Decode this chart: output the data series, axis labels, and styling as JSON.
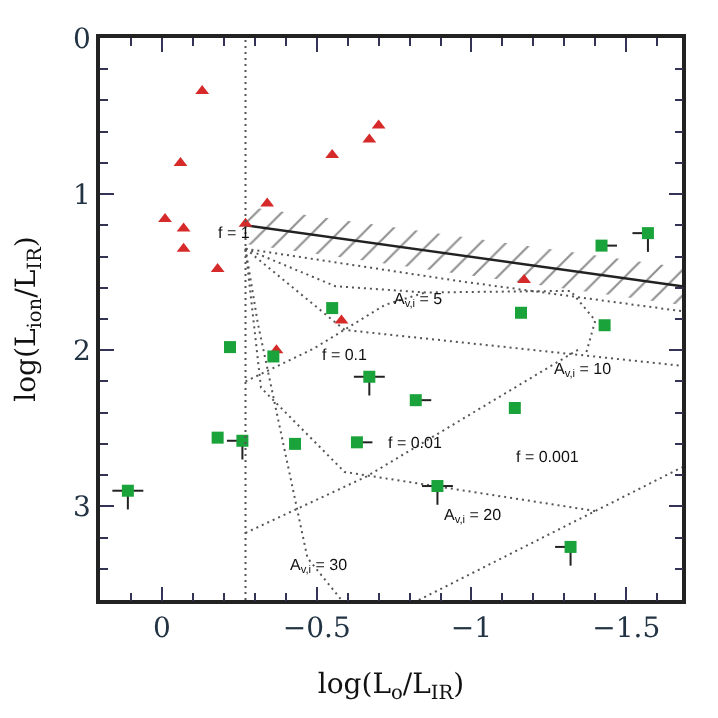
{
  "chart_data": {
    "type": "scatter",
    "xlabel": "log(L$_{o}$/L$_{IR}$)",
    "ylabel": "log(L$_{ion}$/L$_{IR}$)",
    "xlim": [
      0.2,
      -1.68
    ],
    "ylim": [
      3.6,
      0
    ],
    "xticks": [
      0,
      {
        "value": -0.5,
        "label": "−0.5"
      },
      {
        "value": -1,
        "label": "−1"
      },
      {
        "value": -1.5,
        "label": "−1.5"
      }
    ],
    "yticks": [
      0,
      1,
      2,
      3
    ],
    "series": [
      {
        "type": "line",
        "line_style": "dotted",
        "color": "#555555",
        "x": [
          -0.27,
          -0.97,
          -1.68
        ],
        "values": [
          1.35,
          1.56,
          1.75
        ]
      },
      {
        "type": "line",
        "line_style": "dotted",
        "color": "#555555",
        "x": [
          -0.27,
          -0.56,
          -0.85,
          -1.32,
          -1.4,
          -1.37
        ],
        "values": [
          1.35,
          1.59,
          1.63,
          1.62,
          1.81,
          2.02
        ]
      },
      {
        "type": "line",
        "line_style": "dotted",
        "color": "#555555",
        "x": [
          -0.27,
          -0.59,
          -1.68
        ],
        "values": [
          1.35,
          1.87,
          2.1
        ]
      },
      {
        "type": "line",
        "line_style": "dotted",
        "color": "#555555",
        "x": [
          -0.27,
          -0.32,
          -0.59,
          -1.4
        ],
        "values": [
          1.35,
          2.24,
          2.78,
          3.03
        ]
      },
      {
        "type": "line",
        "line_style": "dotted",
        "color": "#555555",
        "x": [
          -0.27,
          -0.31,
          -0.47,
          -0.58
        ],
        "values": [
          1.35,
          1.83,
          3.33,
          3.6
        ]
      },
      {
        "type": "line",
        "line_style": "dotted",
        "color": "#555555",
        "x": [
          -0.27,
          -0.49,
          -0.72,
          -0.85
        ],
        "values": [
          2.2,
          1.99,
          1.71,
          1.63
        ]
      },
      {
        "type": "line",
        "line_style": "dotted",
        "color": "#555555",
        "x": [
          -0.27,
          -0.66,
          -1.35
        ],
        "values": [
          3.17,
          2.81,
          1.99
        ]
      },
      {
        "type": "line",
        "line_style": "dotted",
        "color": "#555555",
        "x": [
          -0.83,
          -1.4,
          -1.68
        ],
        "values": [
          3.6,
          3.03,
          2.75
        ]
      },
      {
        "type": "line",
        "line_style": "solid",
        "color": "#222222",
        "x": [
          -0.27,
          -1.68
        ],
        "values": [
          1.2,
          1.59
        ],
        "lower": [
          1.08,
          1.47
        ],
        "upper": [
          1.32,
          1.71
        ]
      },
      {
        "marker": "triangle",
        "color": "#d62a2a",
        "x": [
          -0.13,
          -0.06,
          -0.55,
          -0.01,
          -0.07,
          -0.07,
          -0.18,
          -0.27,
          -0.34,
          -0.58,
          -0.7,
          -0.67,
          -1.17,
          -0.37
        ],
        "values": [
          0.34,
          0.8,
          0.75,
          1.16,
          1.22,
          1.35,
          1.48,
          1.19,
          1.06,
          1.81,
          0.56,
          0.65,
          1.55,
          2.0
        ]
      },
      {
        "marker": "square",
        "color": "#1aa33a",
        "x": [
          -0.55,
          -1.57,
          -1.42,
          -1.16,
          -1.43,
          -0.22,
          -0.36,
          -0.18,
          -0.26,
          -0.43,
          -0.63,
          0.11,
          -0.67,
          -0.82,
          -1.14,
          -0.89,
          -1.32
        ],
        "values": [
          1.73,
          1.25,
          1.33,
          1.76,
          1.84,
          1.98,
          2.04,
          2.56,
          2.58,
          2.6,
          2.59,
          2.9,
          2.17,
          2.32,
          2.37,
          2.87,
          3.26
        ],
        "xerrors": [
          null,
          [
            -1.57,
            -1.52
          ],
          [
            -1.47,
            -1.42
          ],
          null,
          null,
          null,
          null,
          null,
          [
            -0.26,
            -0.21
          ],
          null,
          [
            -0.68,
            -0.63
          ],
          [
            0.06,
            0.16
          ],
          [
            -0.72,
            -0.62
          ],
          [
            -0.87,
            -0.82
          ],
          null,
          [
            -0.94,
            -0.84
          ],
          [
            -1.32,
            -1.27
          ]
        ],
        "errors": [
          null,
          [
            1.25,
            1.37
          ],
          null,
          null,
          null,
          null,
          null,
          null,
          [
            2.58,
            2.7
          ],
          null,
          null,
          [
            2.9,
            3.02
          ],
          [
            2.17,
            2.29
          ],
          null,
          null,
          [
            2.87,
            2.99
          ],
          [
            3.26,
            3.38
          ]
        ]
      }
    ],
    "ref_lines": [
      {
        "axis": "x",
        "value": -0.27,
        "color": "#555555",
        "line_style": "dotted"
      }
    ],
    "annotations": [
      {
        "text": "f = 1",
        "x": -0.23,
        "y": 1.25
      },
      {
        "text": "A$_{v,i}$ = 5",
        "x": -0.83,
        "y": 1.68
      },
      "f = 0.1",
      "A$_{v,i}$ = 10",
      {
        "text": "f = 0.01",
        "x": -0.82,
        "y": 2.59
      },
      "f = 0.001",
      "A$_{v,i}$ = 20",
      {
        "text": "A$_{v,i}$ = 30",
        "x": -0.51,
        "y": 3.39
      }
    ]
  }
}
